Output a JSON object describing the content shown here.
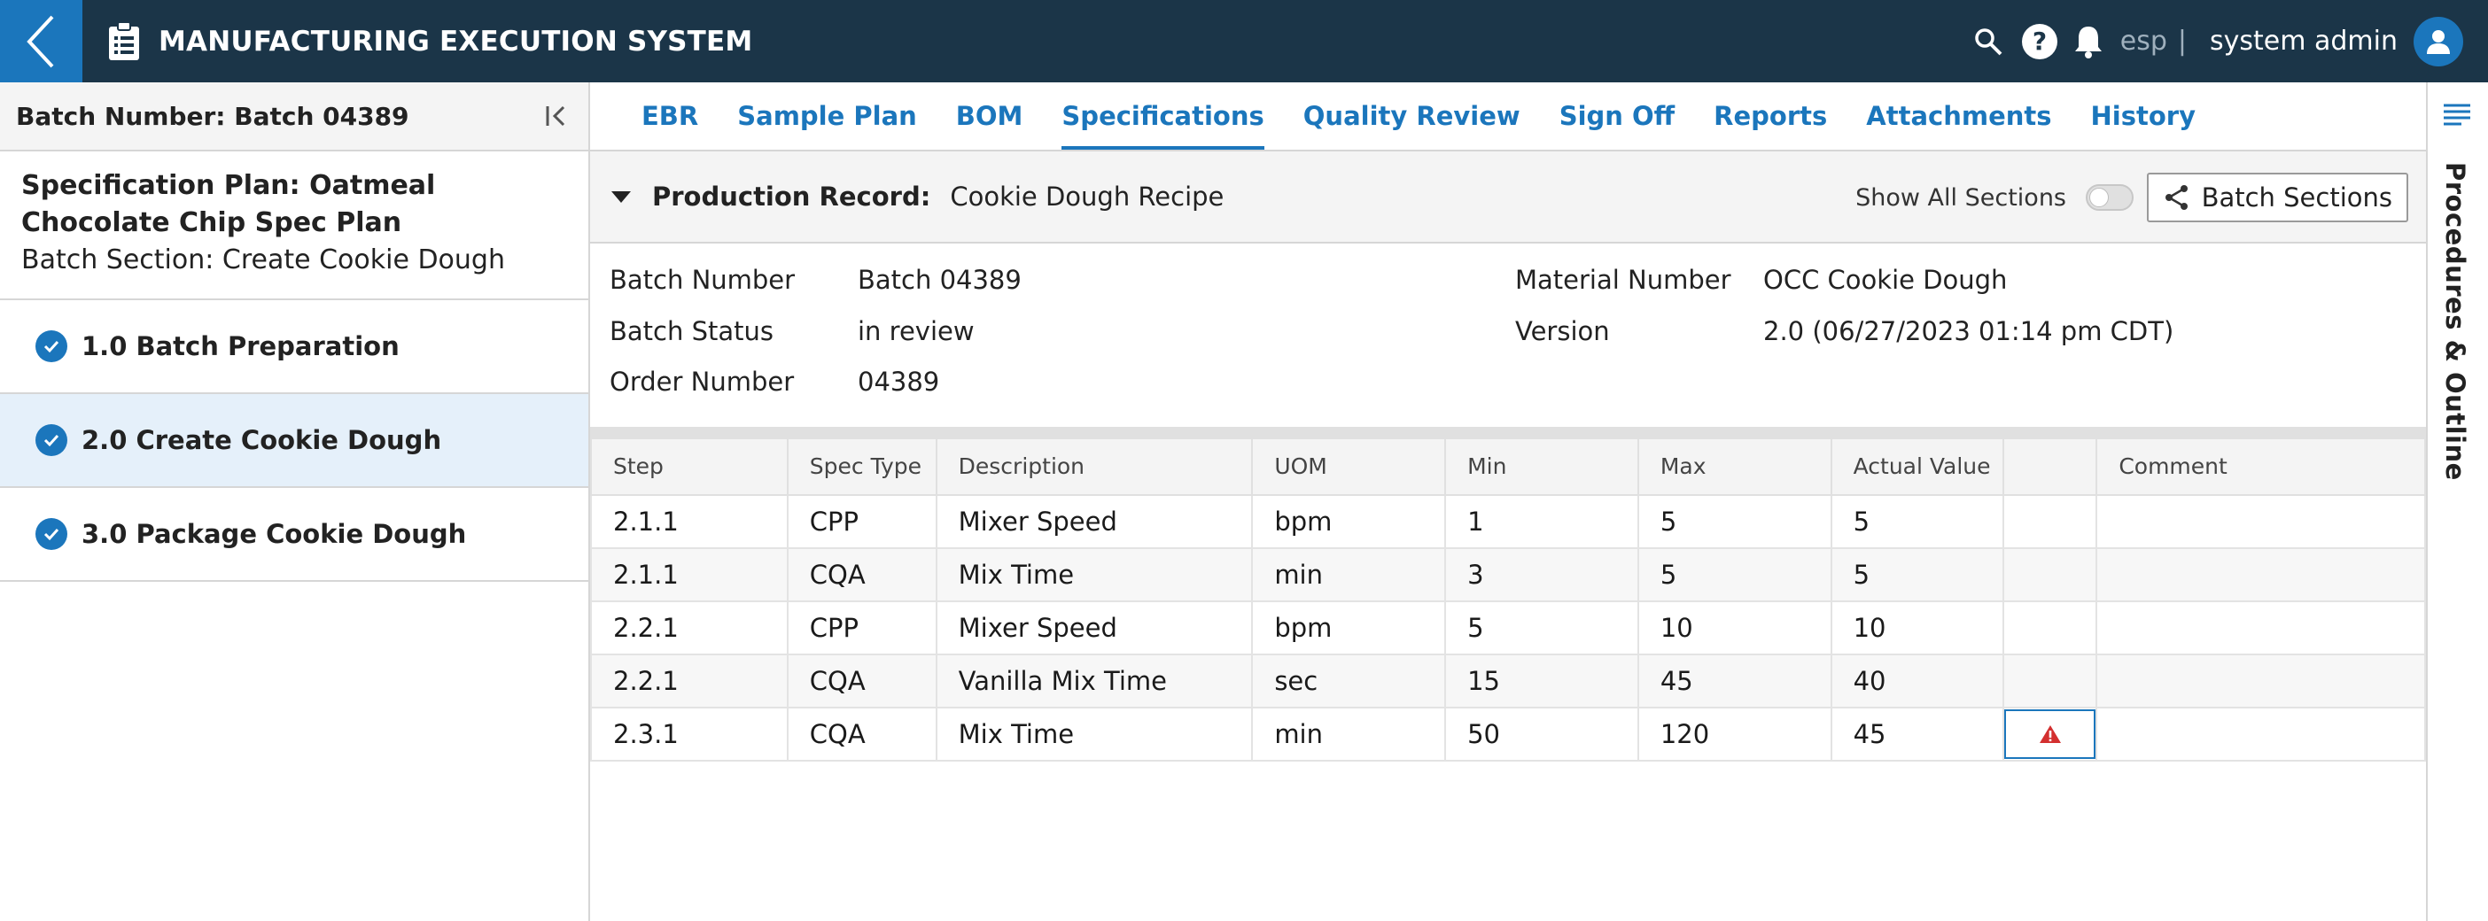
{
  "header": {
    "title": "MANUFACTURING EXECUTION SYSTEM",
    "language": "esp",
    "separator": "|",
    "user": "system admin"
  },
  "left_panel": {
    "batch_label": "Batch Number: Batch 04389",
    "plan_title": "Specification Plan: Oatmeal Chocolate Chip Spec Plan",
    "batch_section": "Batch Section: Create Cookie Dough",
    "items": [
      {
        "label": "1.0 Batch Preparation"
      },
      {
        "label": "2.0 Create Cookie Dough"
      },
      {
        "label": "3.0 Package Cookie Dough"
      }
    ]
  },
  "tabs": [
    {
      "label": "EBR"
    },
    {
      "label": "Sample Plan"
    },
    {
      "label": "BOM"
    },
    {
      "label": "Specifications"
    },
    {
      "label": "Quality Review"
    },
    {
      "label": "Sign Off"
    },
    {
      "label": "Reports"
    },
    {
      "label": "Attachments"
    },
    {
      "label": "History"
    }
  ],
  "record": {
    "label": "Production Record:",
    "value": "Cookie Dough Recipe",
    "show_all_label": "Show All Sections",
    "batch_sections_label": "Batch Sections"
  },
  "info": {
    "batch_number_label": "Batch Number",
    "batch_number": "Batch 04389",
    "batch_status_label": "Batch Status",
    "batch_status": "in review",
    "order_number_label": "Order Number",
    "order_number": "04389",
    "material_number_label": "Material Number",
    "material_number": "OCC Cookie Dough",
    "version_label": "Version",
    "version": "2.0 (06/27/2023 01:14 pm CDT)"
  },
  "table": {
    "headers": [
      "Step",
      "Spec Type",
      "Description",
      "UOM",
      "Min",
      "Max",
      "Actual Value",
      "",
      "Comment"
    ],
    "rows": [
      [
        "2.1.1",
        "CPP",
        "Mixer Speed",
        "bpm",
        "1",
        "5",
        "5",
        "",
        ""
      ],
      [
        "2.1.1",
        "CQA",
        "Mix Time",
        "min",
        "3",
        "5",
        "5",
        "",
        ""
      ],
      [
        "2.2.1",
        "CPP",
        "Mixer Speed",
        "bpm",
        "5",
        "10",
        "10",
        "",
        ""
      ],
      [
        "2.2.1",
        "CQA",
        "Vanilla Mix Time",
        "sec",
        "15",
        "45",
        "40",
        "",
        ""
      ],
      [
        "2.3.1",
        "CQA",
        "Mix Time",
        "min",
        "50",
        "120",
        "45",
        "",
        ""
      ]
    ]
  },
  "right_panel": {
    "label": "Procedures & Outline"
  },
  "colors": {
    "header_bg": "#1b3548",
    "accent": "#1b76bc",
    "warning": "#d32f2f"
  }
}
